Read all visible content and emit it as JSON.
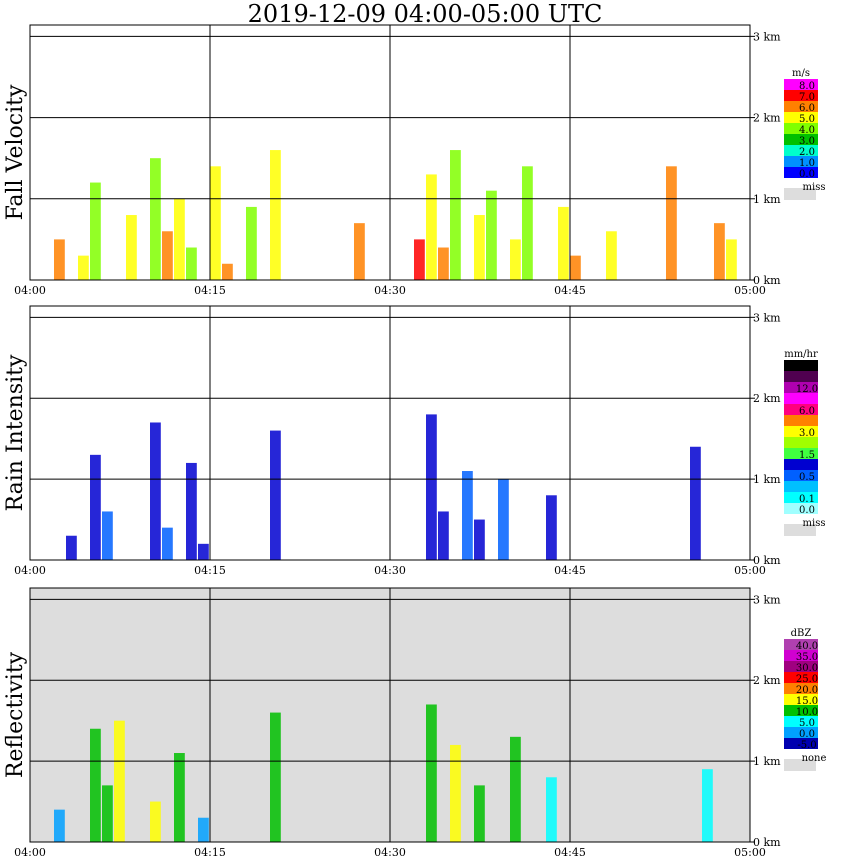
{
  "title": "2019-12-09   04:00-05:00 UTC",
  "chart_data": [
    {
      "type": "heatmap",
      "title": "Fall Velocity",
      "x_ticks": [
        "04:00",
        "04:15",
        "04:30",
        "04:45",
        "05:00"
      ],
      "y_ticks": [
        "0 km",
        "1 km",
        "2 km",
        "3 km"
      ],
      "ylim_km": [
        0,
        3.0
      ],
      "legend_unit": "m/s",
      "legend": [
        {
          "label": "8.0",
          "color": "#ff00ff"
        },
        {
          "label": "7.0",
          "color": "#ff0000"
        },
        {
          "label": "6.0",
          "color": "#ff8000"
        },
        {
          "label": "5.0",
          "color": "#ffff00"
        },
        {
          "label": "4.0",
          "color": "#80ff00"
        },
        {
          "label": "3.0",
          "color": "#00c000"
        },
        {
          "label": "2.0",
          "color": "#00ffcc"
        },
        {
          "label": "1.0",
          "color": "#0090ff"
        },
        {
          "label": "0.0",
          "color": "#0000ff"
        }
      ],
      "missing_label": "miss",
      "missing_color": "#dddddd",
      "background": "#ffffff",
      "cells": [
        {
          "t": 2,
          "h": 0.5,
          "v": 2
        },
        {
          "t": 4,
          "h": 0.3,
          "v": 3
        },
        {
          "t": 5,
          "h": 1.2,
          "v": 4
        },
        {
          "t": 8,
          "h": 0.8,
          "v": 3
        },
        {
          "t": 10,
          "h": 1.5,
          "v": 4
        },
        {
          "t": 11,
          "h": 0.6,
          "v": 2
        },
        {
          "t": 12,
          "h": 1.0,
          "v": 3
        },
        {
          "t": 13,
          "h": 0.4,
          "v": 4
        },
        {
          "t": 15,
          "h": 1.4,
          "v": 3
        },
        {
          "t": 16,
          "h": 0.2,
          "v": 2
        },
        {
          "t": 18,
          "h": 0.9,
          "v": 4
        },
        {
          "t": 20,
          "h": 1.6,
          "v": 3
        },
        {
          "t": 27,
          "h": 0.7,
          "v": 2
        },
        {
          "t": 32,
          "h": 0.5,
          "v": 1
        },
        {
          "t": 33,
          "h": 1.3,
          "v": 3
        },
        {
          "t": 34,
          "h": 0.4,
          "v": 2
        },
        {
          "t": 35,
          "h": 1.6,
          "v": 4
        },
        {
          "t": 37,
          "h": 0.8,
          "v": 3
        },
        {
          "t": 38,
          "h": 1.1,
          "v": 4
        },
        {
          "t": 40,
          "h": 0.5,
          "v": 3
        },
        {
          "t": 41,
          "h": 1.4,
          "v": 4
        },
        {
          "t": 44,
          "h": 0.9,
          "v": 3
        },
        {
          "t": 45,
          "h": 0.3,
          "v": 2
        },
        {
          "t": 48,
          "h": 0.6,
          "v": 3
        },
        {
          "t": 53,
          "h": 1.4,
          "v": 2
        },
        {
          "t": 57,
          "h": 0.7,
          "v": 2
        },
        {
          "t": 58,
          "h": 0.5,
          "v": 3
        }
      ]
    },
    {
      "type": "heatmap",
      "title": "Rain Intensity",
      "x_ticks": [
        "04:00",
        "04:15",
        "04:30",
        "04:45",
        "05:00"
      ],
      "y_ticks": [
        "0 km",
        "1 km",
        "2 km",
        "3 km"
      ],
      "ylim_km": [
        0,
        3.0
      ],
      "legend_unit": "mm/hr",
      "legend": [
        {
          "label": "48.0",
          "color": "#000000"
        },
        {
          "label": "",
          "color": "#500050"
        },
        {
          "label": "12.0",
          "color": "#b000b0"
        },
        {
          "label": "",
          "color": "#ff00ff"
        },
        {
          "label": "6.0",
          "color": "#ff0080"
        },
        {
          "label": "",
          "color": "#ff8000"
        },
        {
          "label": "3.0",
          "color": "#ffff00"
        },
        {
          "label": "",
          "color": "#a0ff00"
        },
        {
          "label": "1.5",
          "color": "#40ff40"
        },
        {
          "label": "",
          "color": "#0000d0"
        },
        {
          "label": "0.5",
          "color": "#0060ff"
        },
        {
          "label": "",
          "color": "#00c0ff"
        },
        {
          "label": "0.1",
          "color": "#00ffff"
        },
        {
          "label": "0.0",
          "color": "#a0ffff"
        }
      ],
      "missing_label": "miss",
      "missing_color": "#dddddd",
      "background": "#ffffff",
      "cells": [
        {
          "t": 3,
          "h": 0.3,
          "v": 9
        },
        {
          "t": 5,
          "h": 1.3,
          "v": 9
        },
        {
          "t": 6,
          "h": 0.6,
          "v": 10
        },
        {
          "t": 10,
          "h": 1.7,
          "v": 9
        },
        {
          "t": 11,
          "h": 0.4,
          "v": 10
        },
        {
          "t": 13,
          "h": 1.2,
          "v": 9
        },
        {
          "t": 14,
          "h": 0.2,
          "v": 9
        },
        {
          "t": 20,
          "h": 1.6,
          "v": 9
        },
        {
          "t": 33,
          "h": 1.8,
          "v": 9
        },
        {
          "t": 34,
          "h": 0.6,
          "v": 9
        },
        {
          "t": 36,
          "h": 1.1,
          "v": 10
        },
        {
          "t": 37,
          "h": 0.5,
          "v": 9
        },
        {
          "t": 39,
          "h": 1.0,
          "v": 10
        },
        {
          "t": 43,
          "h": 0.8,
          "v": 9
        },
        {
          "t": 55,
          "h": 1.4,
          "v": 9
        }
      ]
    },
    {
      "type": "heatmap",
      "title": "Reflectivity",
      "x_ticks": [
        "04:00",
        "04:15",
        "04:30",
        "04:45",
        "05:00"
      ],
      "y_ticks": [
        "0 km",
        "1 km",
        "2 km",
        "3 km"
      ],
      "ylim_km": [
        0,
        3.0
      ],
      "legend_unit": "dBZ",
      "legend": [
        {
          "label": "40.0",
          "color": "#b040b0"
        },
        {
          "label": "35.0",
          "color": "#d000d0"
        },
        {
          "label": "30.0",
          "color": "#a00080"
        },
        {
          "label": "25.0",
          "color": "#ff0000"
        },
        {
          "label": "20.0",
          "color": "#ff8000"
        },
        {
          "label": "15.0",
          "color": "#ffff00"
        },
        {
          "label": "10.0",
          "color": "#00c000"
        },
        {
          "label": "5.0",
          "color": "#00ffff"
        },
        {
          "label": "0.0",
          "color": "#00a0ff"
        },
        {
          "label": "-5.0",
          "color": "#0000b0"
        }
      ],
      "missing_label": "none",
      "missing_color": "#dddddd",
      "background": "#dddddd",
      "cells": [
        {
          "t": 2,
          "h": 0.4,
          "v": 8
        },
        {
          "t": 5,
          "h": 1.4,
          "v": 6
        },
        {
          "t": 6,
          "h": 0.7,
          "v": 6
        },
        {
          "t": 7,
          "h": 1.5,
          "v": 5
        },
        {
          "t": 10,
          "h": 0.5,
          "v": 5
        },
        {
          "t": 12,
          "h": 1.1,
          "v": 6
        },
        {
          "t": 14,
          "h": 0.3,
          "v": 8
        },
        {
          "t": 20,
          "h": 1.6,
          "v": 6
        },
        {
          "t": 33,
          "h": 1.7,
          "v": 6
        },
        {
          "t": 35,
          "h": 1.2,
          "v": 5
        },
        {
          "t": 37,
          "h": 0.7,
          "v": 6
        },
        {
          "t": 40,
          "h": 1.3,
          "v": 6
        },
        {
          "t": 43,
          "h": 0.8,
          "v": 7
        },
        {
          "t": 56,
          "h": 0.9,
          "v": 7
        }
      ]
    }
  ]
}
